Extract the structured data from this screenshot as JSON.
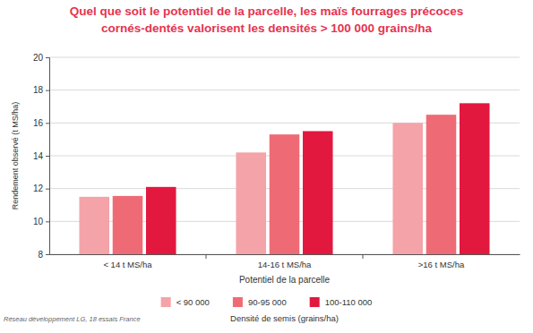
{
  "chart_data": {
    "type": "bar",
    "title": [
      "Quel que soit le potentiel de la parcelle, les maïs fourrages précoces",
      "cornés-dentés valorisent les densités > 100 000 grains/ha"
    ],
    "x_label": "Potentiel de la parcelle",
    "y_label": "Rendement observé (t MS/ha)",
    "legend_title": "Densité de semis (grains/ha)",
    "source": "Réseau développement LG, 18 essais France",
    "categories": [
      "< 14 t MS/ha",
      "14-16 t MS/ha",
      ">16 t MS/ha"
    ],
    "series": [
      {
        "name": "< 90 000",
        "color": "#f4a3a8",
        "values": [
          11.5,
          14.2,
          16.0
        ]
      },
      {
        "name": "90-95 000",
        "color": "#ee6b75",
        "values": [
          11.55,
          15.3,
          16.5
        ]
      },
      {
        "name": "100-110 000",
        "color": "#e3183f",
        "values": [
          12.1,
          15.5,
          17.2
        ]
      }
    ],
    "ylim": [
      8,
      20
    ],
    "yticks": [
      8,
      10,
      12,
      14,
      16,
      18,
      20
    ],
    "grid": true,
    "legend": "bottom"
  }
}
